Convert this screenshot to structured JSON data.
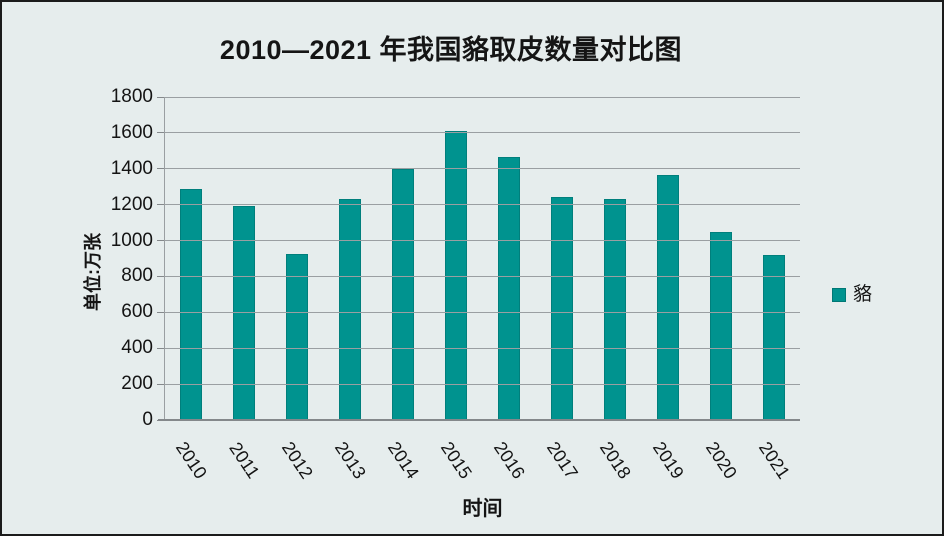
{
  "chart_data": {
    "type": "bar",
    "title": "2010—2021 年我国貉取皮数量对比图",
    "xlabel": "时间",
    "ylabel": "单位:万张",
    "categories": [
      "2010",
      "2011",
      "2012",
      "2013",
      "2014",
      "2015",
      "2016",
      "2017",
      "2018",
      "2019",
      "2020",
      "2021"
    ],
    "series": [
      {
        "name": "貉",
        "values": [
          1285,
          1195,
          925,
          1230,
          1400,
          1610,
          1465,
          1245,
          1230,
          1365,
          1050,
          920
        ]
      }
    ],
    "ylim": [
      0,
      1800
    ],
    "ytick_step": 200,
    "grid": true,
    "gridlines_over_bars": true,
    "legend_position": "right",
    "colors": {
      "bar": "#00938F",
      "background": "#E6EDED",
      "gridline": "#9A9FA2",
      "axis": "#84888B",
      "text": "#141414",
      "frame_border": "#1b1b1b"
    }
  }
}
